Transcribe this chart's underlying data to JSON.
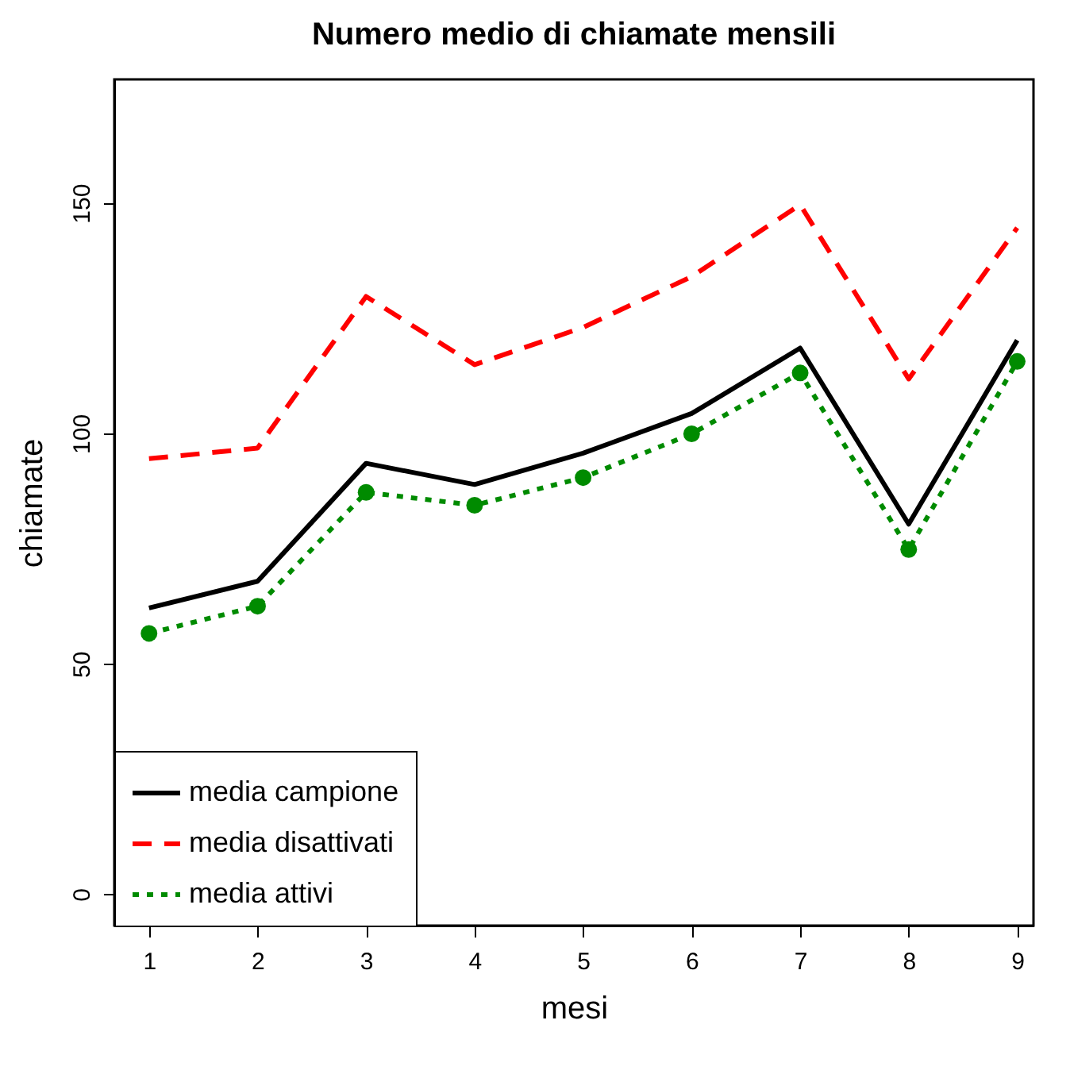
{
  "chart_data": {
    "type": "line",
    "title": "Numero medio di chiamate mensili",
    "xlabel": "mesi",
    "ylabel": "chiamate",
    "x": [
      1,
      2,
      3,
      4,
      5,
      6,
      7,
      8,
      9
    ],
    "series": [
      {
        "name": "media campione",
        "color": "#000000",
        "line_style": "solid",
        "marker": "none",
        "values": [
          62.1,
          67.9,
          93.5,
          88.9,
          95.7,
          104.3,
          118.5,
          80.3,
          120.2
        ]
      },
      {
        "name": "media disattivati",
        "color": "#ff0000",
        "line_style": "dashed",
        "marker": "none",
        "values": [
          94.5,
          96.8,
          129.7,
          114.9,
          123,
          134,
          149.6,
          111.8,
          144.6
        ]
      },
      {
        "name": "media attivi",
        "color": "#008b00",
        "line_style": "dotted",
        "marker": "circle",
        "values": [
          56.6,
          62.5,
          87.2,
          84.4,
          90.4,
          99.9,
          113.1,
          74.8,
          115.6
        ]
      }
    ],
    "xlim": [
      0.68,
      9.15
    ],
    "xticks": [
      1,
      2,
      3,
      4,
      5,
      6,
      7,
      8,
      9
    ],
    "ylim": [
      -6.8,
      176.8
    ],
    "yticks": [
      0,
      50,
      100,
      150
    ],
    "grid": false,
    "legend": "bottom left"
  }
}
